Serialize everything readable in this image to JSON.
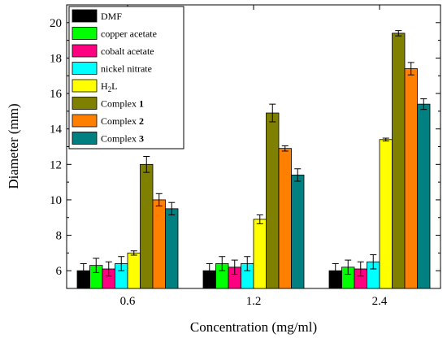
{
  "chart_data": {
    "type": "bar",
    "title": "",
    "xlabel": "Concentration (mg/ml)",
    "ylabel": "Diameter (mm)",
    "categories": [
      "0.6",
      "1.2",
      "2.4"
    ],
    "ylim": [
      5,
      21
    ],
    "yticks": [
      "6",
      "8",
      "10",
      "12",
      "14",
      "16",
      "18",
      "20"
    ],
    "grid": false,
    "legend_position": "top-left",
    "error_bars": true,
    "series": [
      {
        "name": "DMF",
        "name_main": "DMF",
        "name_sub": "",
        "name_suffix": "",
        "name_bold": "",
        "color": "#000000",
        "values": [
          6.0,
          6.0,
          6.0
        ],
        "errors": [
          0.4,
          0.4,
          0.4
        ]
      },
      {
        "name": "copper acetate",
        "name_main": "copper acetate",
        "name_sub": "",
        "name_suffix": "",
        "name_bold": "",
        "color": "#00ff00",
        "values": [
          6.3,
          6.4,
          6.2
        ],
        "errors": [
          0.4,
          0.4,
          0.4
        ]
      },
      {
        "name": "cobalt acetate",
        "name_main": "cobalt acetate",
        "name_sub": "",
        "name_suffix": "",
        "name_bold": "",
        "color": "#ff0080",
        "values": [
          6.1,
          6.2,
          6.1
        ],
        "errors": [
          0.4,
          0.4,
          0.4
        ]
      },
      {
        "name": "nickel nitrate",
        "name_main": "nickel nitrate",
        "name_sub": "",
        "name_suffix": "",
        "name_bold": "",
        "color": "#00ffff",
        "values": [
          6.4,
          6.4,
          6.5
        ],
        "errors": [
          0.4,
          0.4,
          0.4
        ]
      },
      {
        "name": "H2L",
        "name_main": "H",
        "name_sub": "2",
        "name_suffix": "L",
        "name_bold": "",
        "color": "#ffff00",
        "values": [
          7.0,
          8.9,
          13.4
        ],
        "errors": [
          0.12,
          0.25,
          0.08
        ]
      },
      {
        "name": "Complex 1",
        "name_main": "Complex ",
        "name_sub": "",
        "name_suffix": "",
        "name_bold": "1",
        "color": "#808000",
        "values": [
          12.0,
          14.9,
          19.4
        ],
        "errors": [
          0.45,
          0.5,
          0.15
        ]
      },
      {
        "name": "Complex 2",
        "name_main": "Complex ",
        "name_sub": "",
        "name_suffix": "",
        "name_bold": "2",
        "color": "#ff8000",
        "values": [
          10.0,
          12.9,
          17.4
        ],
        "errors": [
          0.35,
          0.15,
          0.35
        ]
      },
      {
        "name": "Complex 3",
        "name_main": "Complex ",
        "name_sub": "",
        "name_suffix": "",
        "name_bold": "3",
        "color": "#008080",
        "values": [
          9.5,
          11.4,
          15.4
        ],
        "errors": [
          0.35,
          0.35,
          0.3
        ]
      }
    ]
  }
}
